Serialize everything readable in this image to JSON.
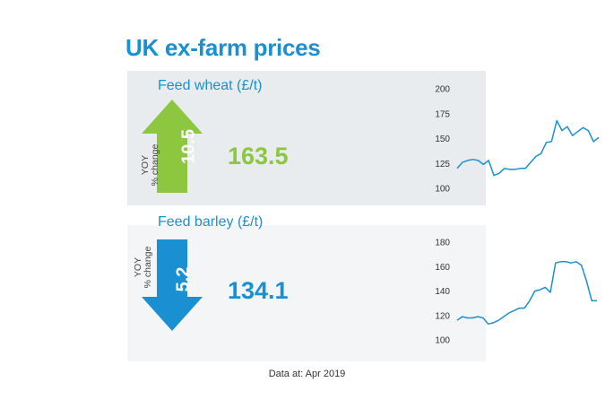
{
  "title": "UK ex-farm prices",
  "footnote": "Data at: Apr 2019",
  "colors": {
    "title": "#1a8fd1",
    "wheat": "#8dc63f",
    "barley": "#1a8fd1",
    "line": "#1a8fd1"
  },
  "wheat": {
    "label": "Feed wheat (£/t)",
    "yoy_label_1": "YOY",
    "yoy_label_2": "% change",
    "yoy_change": "10.5",
    "direction": "up",
    "price": "163.5"
  },
  "barley": {
    "label": "Feed barley (£/t)",
    "yoy_label_1": "YOY",
    "yoy_label_2": "% change",
    "yoy_change": "5.2",
    "direction": "down",
    "price": "134.1"
  },
  "chart_data": [
    {
      "type": "line",
      "title": "Feed wheat (£/t)",
      "ylim": [
        100,
        200
      ],
      "yticks": [
        100,
        125,
        150,
        175,
        200
      ],
      "grid": false,
      "series": [
        {
          "values": [
            120,
            126,
            128,
            129,
            128,
            124,
            128,
            113,
            115,
            120,
            119,
            119,
            120,
            120,
            126,
            132,
            135,
            146,
            147,
            168,
            158,
            162,
            153,
            157,
            161,
            158,
            147,
            151
          ]
        }
      ]
    },
    {
      "type": "line",
      "title": "Feed barley (£/t)",
      "ylim": [
        100,
        180
      ],
      "yticks": [
        100,
        120,
        140,
        160,
        180
      ],
      "grid": false,
      "series": [
        {
          "values": [
            116,
            119,
            118,
            118,
            119,
            118,
            113,
            114,
            116,
            119,
            122,
            124,
            126,
            126,
            132,
            140,
            141,
            143,
            139,
            163,
            164,
            164,
            163,
            164,
            161,
            148,
            132,
            132
          ]
        }
      ]
    }
  ]
}
